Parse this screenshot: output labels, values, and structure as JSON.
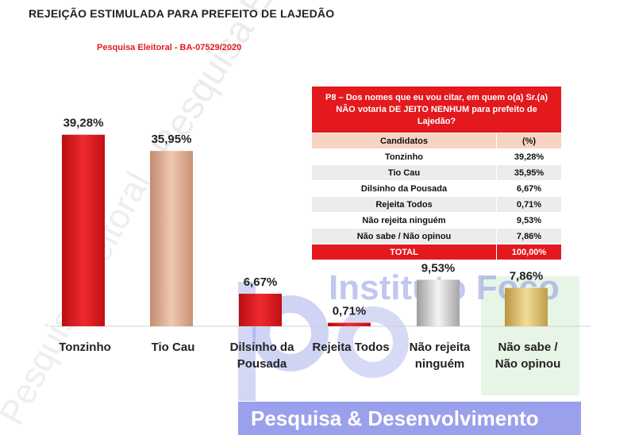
{
  "title": "REJEIÇÃO ESTIMULADA PARA PREFEITO DE LAJEDÃO",
  "subtitle": "Pesquisa Eleitoral - BA-07529/2020",
  "watermark": {
    "diagonal": "Pesquisa Eleitoral - BA-07529/2020",
    "left": "Pesquisa Eleitoral",
    "logo_text": "Instituto Foco",
    "footer": "Pesquisa & Desenvolvimento"
  },
  "colors": {
    "red": "#e3191e",
    "peach": "#d7a78e",
    "silver": "#c8c8c8",
    "gold": "#d9bc6a"
  },
  "chart_data": {
    "type": "bar",
    "categories": [
      "Tonzinho",
      "Tio Cau",
      "Dilsinho da Pousada",
      "Rejeita Todos",
      "Não rejeita ninguém",
      "Não sabe / Não opinou"
    ],
    "category_lines": [
      [
        "Tonzinho"
      ],
      [
        "Tio Cau"
      ],
      [
        "Dilsinho da",
        "Pousada"
      ],
      [
        "Rejeita Todos"
      ],
      [
        "Não rejeita",
        "ninguém"
      ],
      [
        "Não sabe /",
        "Não opinou"
      ]
    ],
    "values": [
      39.28,
      35.95,
      6.67,
      0.71,
      9.53,
      7.86
    ],
    "labels": [
      "39,28%",
      "35,95%",
      "6,67%",
      "0,71%",
      "9,53%",
      "7,86%"
    ],
    "bar_colors": [
      "#e3191e",
      "#d7a78e",
      "#e3191e",
      "#e3191e",
      "#c8c8c8",
      "#d9bc6a"
    ],
    "ylim": [
      0,
      42
    ],
    "grid": false,
    "legend": "none"
  },
  "table": {
    "question": "P8 – Dos nomes que eu vou citar, em quem o(a) Sr.(a) NÃO votaria DE JEITO NENHUM para prefeito de Lajedão?",
    "headers": [
      "Candidatos",
      "(%)"
    ],
    "rows": [
      {
        "name": "Tonzinho",
        "value": "39,28%"
      },
      {
        "name": "Tio Cau",
        "value": "35,95%"
      },
      {
        "name": "Dilsinho da Pousada",
        "value": "6,67%"
      },
      {
        "name": "Rejeita Todos",
        "value": "0,71%"
      },
      {
        "name": "Não rejeita ninguém",
        "value": "9,53%"
      },
      {
        "name": "Não sabe / Não opinou",
        "value": "7,86%"
      }
    ],
    "total": {
      "name": "TOTAL",
      "value": "100,00%"
    }
  }
}
